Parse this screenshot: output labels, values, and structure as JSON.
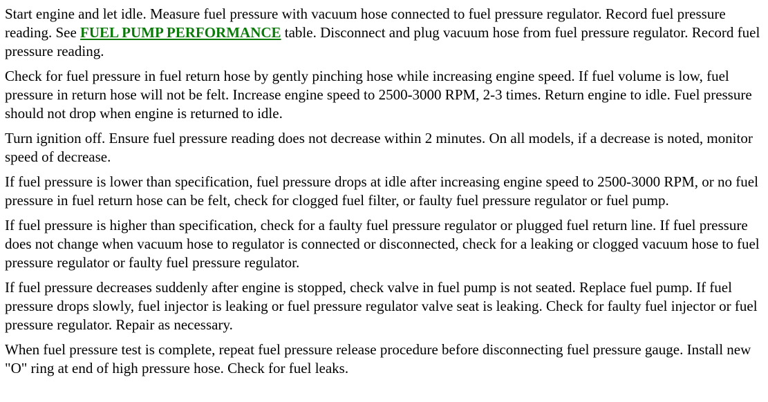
{
  "paragraphs": [
    {
      "before": "Start engine and let idle. Measure fuel pressure with vacuum hose connected to fuel pressure regulator. Record fuel pressure reading. See ",
      "link": "FUEL PUMP PERFORMANCE",
      "after": " table. Disconnect and plug vacuum hose from fuel pressure regulator. Record fuel pressure reading."
    },
    {
      "text": "Check for fuel pressure in fuel return hose by gently pinching hose while increasing engine speed. If fuel volume is low, fuel pressure in return hose will not be felt. Increase engine speed to 2500-3000 RPM, 2-3 times. Return engine to idle. Fuel pressure should not drop when engine is returned to idle."
    },
    {
      "text": "Turn ignition off. Ensure fuel pressure reading does not decrease within 2 minutes. On all models, if a decrease is noted, monitor speed of decrease."
    },
    {
      "text": "If fuel pressure is lower than specification, fuel pressure drops at idle after increasing engine speed to 2500-3000 RPM, or no fuel pressure in fuel return hose can be felt, check for clogged fuel filter, or faulty fuel pressure regulator or fuel pump."
    },
    {
      "text": "If fuel pressure is higher than specification, check for a faulty fuel pressure regulator or plugged fuel return line. If fuel pressure does not change when vacuum hose to regulator is connected or disconnected, check for a leaking or clogged vacuum hose to fuel pressure regulator or faulty fuel pressure regulator."
    },
    {
      "text": "If fuel pressure decreases suddenly after engine is stopped, check valve in fuel pump is not seated. Replace fuel pump. If fuel pressure drops slowly, fuel injector is leaking or fuel pressure regulator valve seat is leaking. Check for faulty fuel injector or fuel pressure regulator. Repair as necessary."
    },
    {
      "text": "When fuel pressure test is complete, repeat fuel pressure release procedure before disconnecting fuel pressure gauge. Install new \"O\" ring at end of high pressure hose. Check for fuel leaks."
    }
  ],
  "colors": {
    "link": "#0b7a0b"
  }
}
